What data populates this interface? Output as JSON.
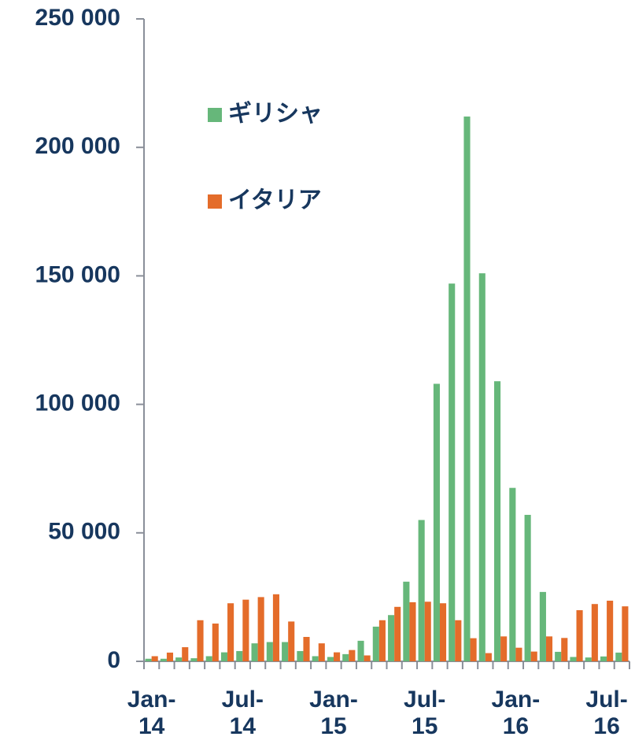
{
  "chart_data": {
    "type": "bar",
    "categories": [
      "Jan-14",
      null,
      null,
      null,
      null,
      null,
      "Jul-14",
      null,
      null,
      null,
      null,
      null,
      "Jan-15",
      null,
      null,
      null,
      null,
      null,
      "Jul-15",
      null,
      null,
      null,
      null,
      null,
      "Jan-16",
      null,
      null,
      null,
      null,
      null,
      "Jul-16",
      null
    ],
    "series": [
      {
        "name": "ギリシャ",
        "color": "#66b77a",
        "values": [
          1000,
          1000,
          1500,
          1200,
          2000,
          3500,
          4000,
          7000,
          7500,
          7500,
          4000,
          2000,
          1700,
          2800,
          8000,
          13500,
          18000,
          31000,
          55000,
          108000,
          147000,
          212000,
          151000,
          109000,
          67500,
          57000,
          27000,
          3700,
          1700,
          1500,
          1900,
          3400
        ]
      },
      {
        "name": "イタリア",
        "color": "#e46c2a",
        "values": [
          2000,
          3400,
          5500,
          16000,
          14700,
          22600,
          24000,
          25000,
          26100,
          15500,
          9500,
          7000,
          3500,
          4400,
          2300,
          16000,
          21200,
          23000,
          23200,
          22600,
          16000,
          9000,
          3200,
          9700,
          5300,
          3800,
          9700,
          9100,
          19900,
          22300,
          23600,
          21400
        ]
      }
    ],
    "ylim": [
      0,
      250000
    ],
    "yticks": [
      0,
      {
        "value": 50000,
        "label": "50 000"
      },
      {
        "value": 100000,
        "label": "100 000"
      },
      {
        "value": 150000,
        "label": "150 000"
      },
      {
        "value": 200000,
        "label": "200 000"
      },
      {
        "value": 250000,
        "label": "250 000"
      }
    ],
    "legend": "upper-left"
  }
}
